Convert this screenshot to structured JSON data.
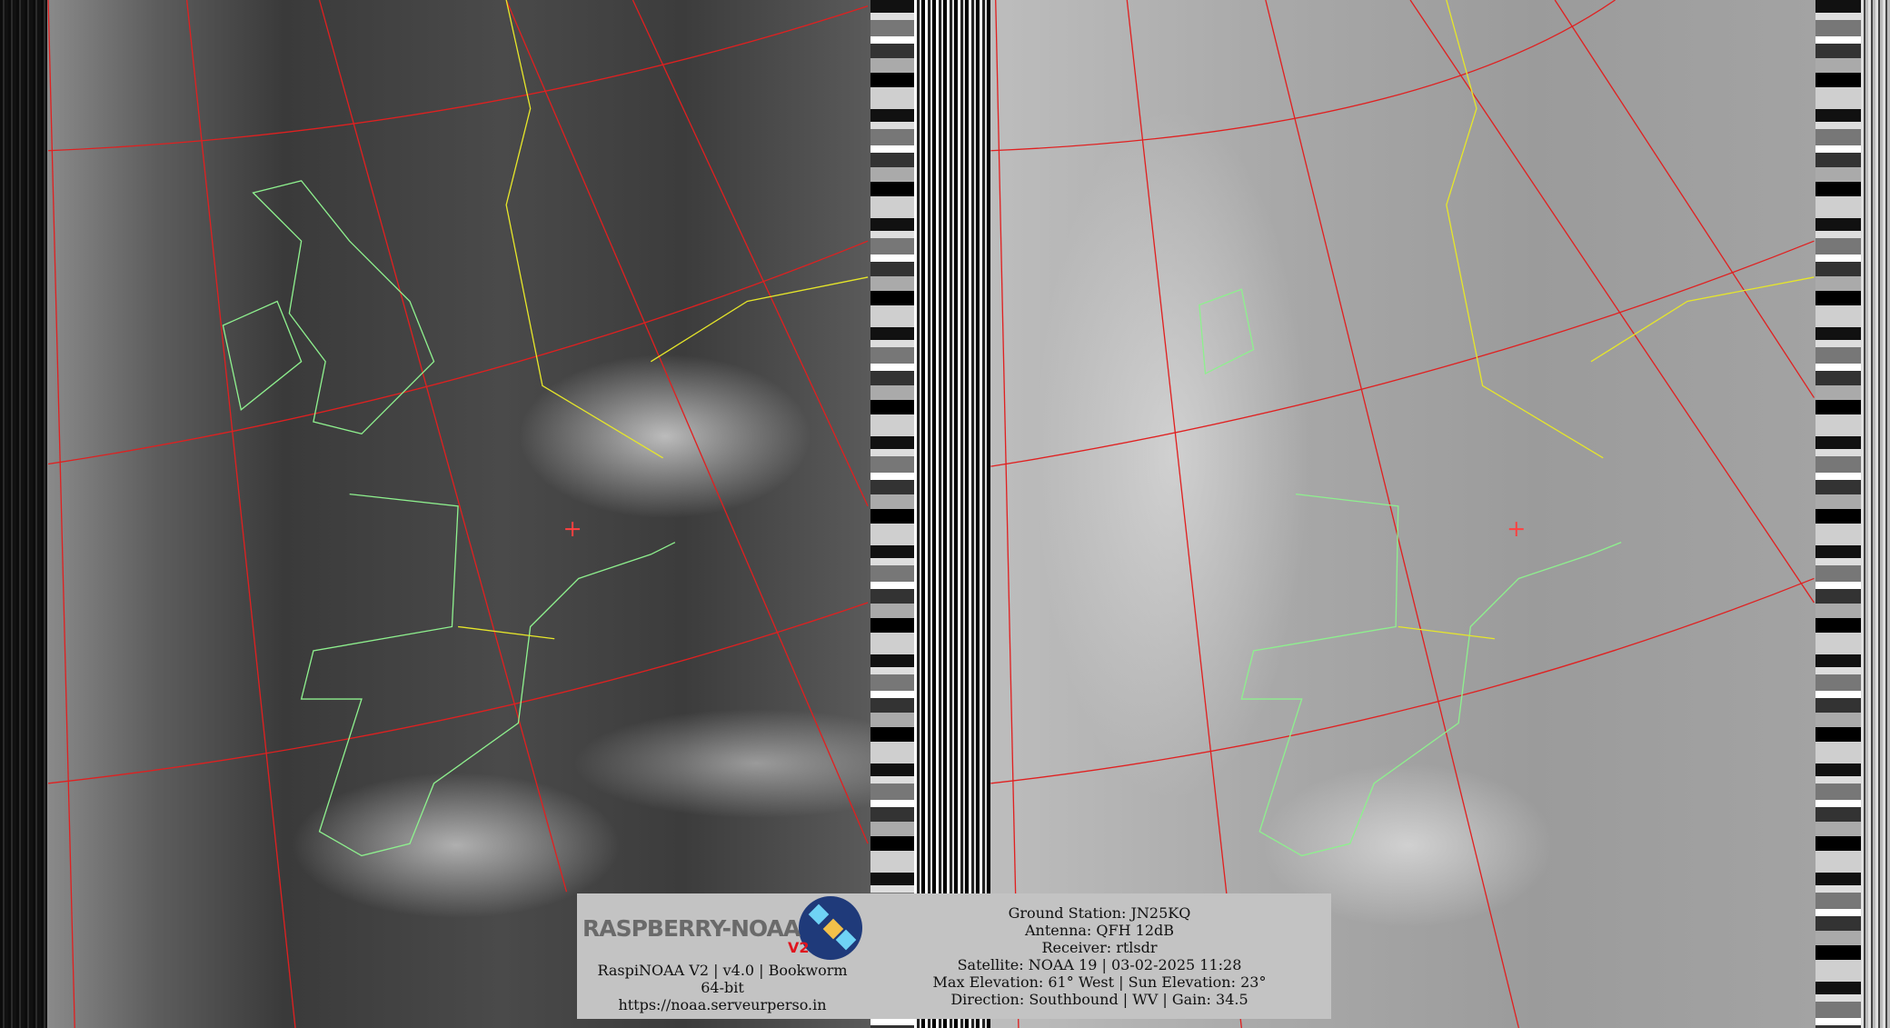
{
  "logo": {
    "text": "RASPBERRY-NOAA",
    "version_badge": "V2"
  },
  "software": {
    "line": "RaspiNOAA V2 | v4.0 | Bookworm 64-bit",
    "url": "https://noaa.serveurperso.in"
  },
  "pass_info": [
    "Ground Station: JN25KQ",
    "Antenna: QFH 12dB",
    "Receiver: rtlsdr",
    "Satellite: NOAA 19 | 03-02-2025 11:28",
    "Max Elevation: 61° West | Sun Elevation: 23°",
    "Direction: Southbound | WV | Gain: 34.5"
  ],
  "colors": {
    "graticule": "#e02020",
    "coastline": "#8ef08e",
    "borders": "#e6e62a",
    "info_box": "#c3c3c3"
  }
}
